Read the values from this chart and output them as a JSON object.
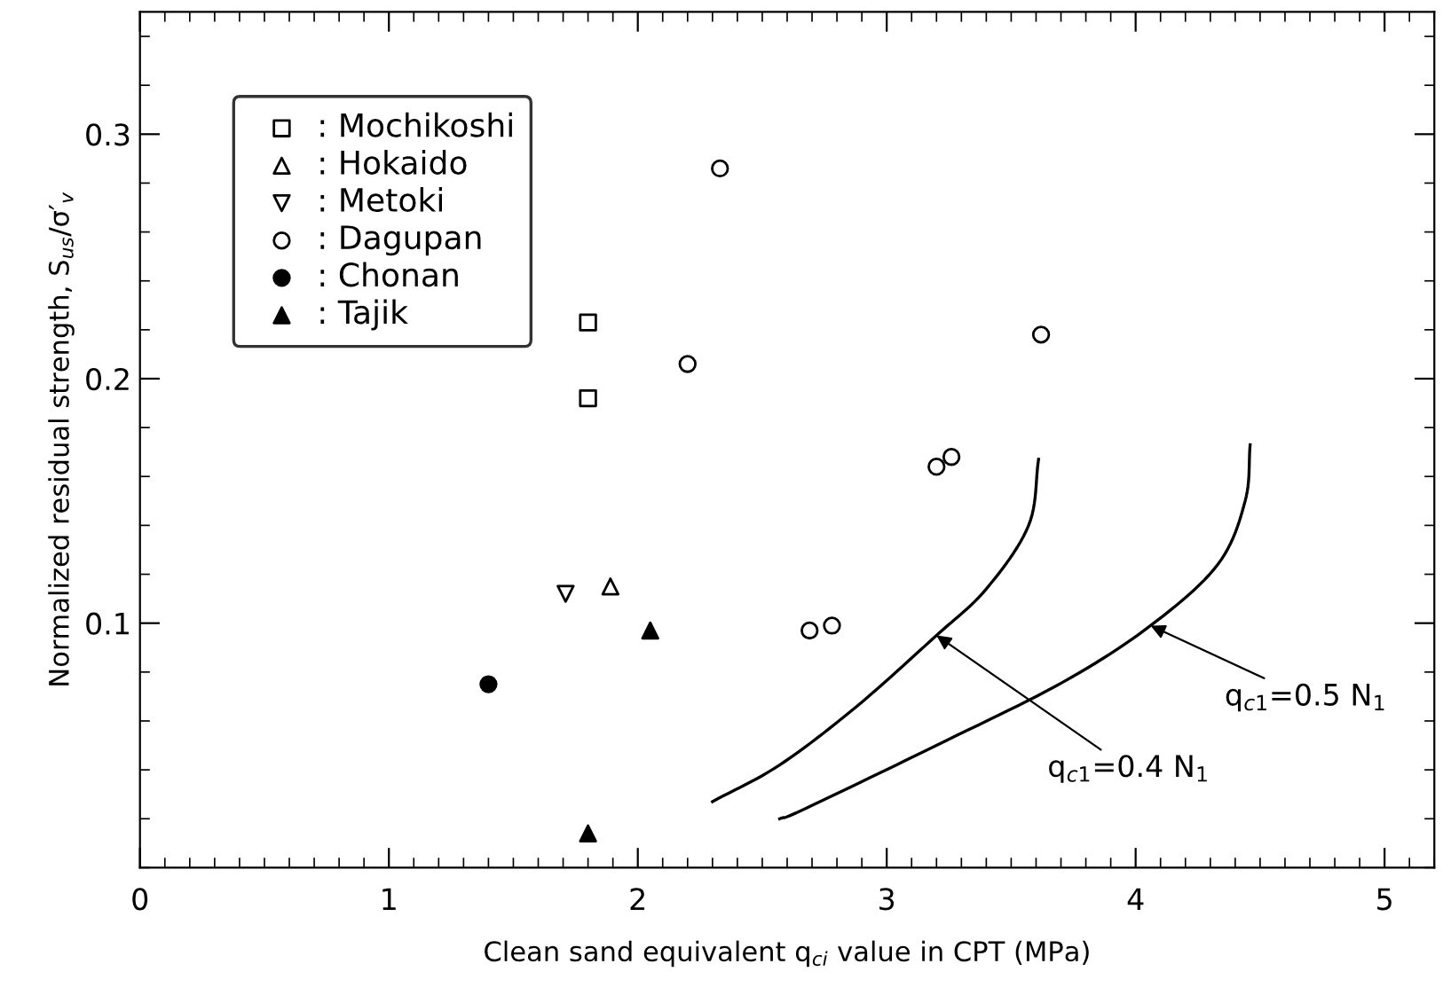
{
  "chart_data": {
    "type": "scatter",
    "xlabel": "Clean sand equivalent q$_{ci}$ value in CPT (MPa)",
    "ylabel": "Normalized residual strength, S$_{us}$/σ′$_{v}$",
    "xlim": [
      0,
      5.2
    ],
    "ylim": [
      0,
      0.35
    ],
    "xticks": [
      0,
      1,
      2,
      3,
      4,
      5
    ],
    "yticks": [
      0.1,
      0.2,
      0.3
    ],
    "grid": false,
    "legend": "top left",
    "series": [
      {
        "name": ": Mochikoshi",
        "color": "#000000",
        "marker": "square-open",
        "x": [
          1.8,
          1.8
        ],
        "values": [
          0.223,
          0.192
        ]
      },
      {
        "name": ": Hokaido",
        "color": "#000000",
        "marker": "triangle-open",
        "x": [
          1.89
        ],
        "values": [
          0.115
        ]
      },
      {
        "name": ": Metoki",
        "color": "#000000",
        "marker": "triangle_down-open",
        "x": [
          1.71
        ],
        "values": [
          0.112
        ]
      },
      {
        "name": ": Dagupan",
        "color": "#000000",
        "marker": "circle-open",
        "x": [
          2.33,
          2.2,
          3.62,
          3.2,
          3.26,
          2.69,
          2.78
        ],
        "values": [
          0.286,
          0.206,
          0.218,
          0.164,
          0.168,
          0.097,
          0.099
        ]
      },
      {
        "name": ": Chonan",
        "color": "#000000",
        "marker": "circle",
        "x": [
          1.4
        ],
        "values": [
          0.075
        ]
      },
      {
        "name": ": Tajik",
        "color": "#000000",
        "marker": "triangle",
        "x": [
          2.05,
          1.8
        ],
        "values": [
          0.097,
          0.014
        ]
      },
      {
        "type": "line",
        "color": "#000000",
        "line_style": "solid",
        "x": [
          2.3,
          2.57,
          2.88,
          3.2,
          3.4,
          3.57,
          3.61
        ],
        "values": [
          0.027,
          0.042,
          0.066,
          0.095,
          0.114,
          0.14,
          0.167
        ]
      },
      {
        "type": "line",
        "color": "#000000",
        "line_style": "solid",
        "x": [
          2.57,
          2.67,
          3.24,
          3.71,
          4.06,
          4.33,
          4.44,
          4.46
        ],
        "values": [
          0.02,
          0.024,
          0.052,
          0.076,
          0.099,
          0.124,
          0.15,
          0.173
        ]
      }
    ],
    "annotations": [
      {
        "text": "q$_{c1}$=0.4 N$_{1}$",
        "x": 3.2,
        "y": 0.095
      },
      {
        "text": "q$_{c1}$=0.5 N$_{1}$",
        "x": 4.06,
        "y": 0.099
      }
    ]
  }
}
